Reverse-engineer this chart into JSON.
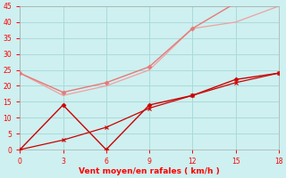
{
  "xlabel": "Vent moyen/en rafales ( km/h )",
  "xlim": [
    0,
    18
  ],
  "ylim": [
    0,
    45
  ],
  "xticks": [
    0,
    3,
    6,
    9,
    12,
    15,
    18
  ],
  "yticks": [
    0,
    5,
    10,
    15,
    20,
    25,
    30,
    35,
    40,
    45
  ],
  "background_color": "#cef0f0",
  "grid_color": "#aadada",
  "line1": {
    "x": [
      0,
      3,
      6,
      9,
      12,
      15,
      18
    ],
    "y": [
      0,
      14,
      0,
      14,
      17,
      22,
      24
    ],
    "color": "#cc0000",
    "linewidth": 1.0,
    "marker": "D",
    "markersize": 2.5
  },
  "line2": {
    "x": [
      0,
      3,
      6,
      9,
      12,
      15,
      18
    ],
    "y": [
      0,
      3,
      7,
      13,
      17,
      21,
      24
    ],
    "color": "#cc0000",
    "linewidth": 0.9,
    "marker": "x",
    "markersize": 3
  },
  "line3": {
    "x": [
      0,
      3,
      6,
      9,
      12,
      15,
      18
    ],
    "y": [
      24,
      18,
      21,
      26,
      38,
      46,
      46
    ],
    "color": "#e87878",
    "linewidth": 1.0,
    "marker": "D",
    "markersize": 2.5
  },
  "line4": {
    "x": [
      0,
      3,
      6,
      9,
      12,
      15,
      18
    ],
    "y": [
      24,
      17,
      20,
      25,
      38,
      40,
      45
    ],
    "color": "#f0a0a0",
    "linewidth": 0.9
  }
}
